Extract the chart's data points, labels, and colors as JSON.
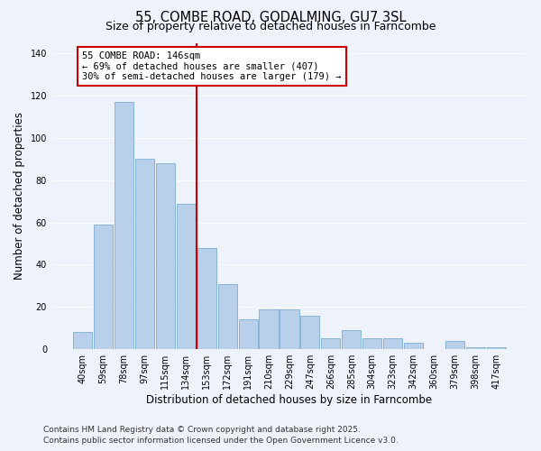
{
  "title": "55, COMBE ROAD, GODALMING, GU7 3SL",
  "subtitle": "Size of property relative to detached houses in Farncombe",
  "xlabel": "Distribution of detached houses by size in Farncombe",
  "ylabel": "Number of detached properties",
  "bar_labels": [
    "40sqm",
    "59sqm",
    "78sqm",
    "97sqm",
    "115sqm",
    "134sqm",
    "153sqm",
    "172sqm",
    "191sqm",
    "210sqm",
    "229sqm",
    "247sqm",
    "266sqm",
    "285sqm",
    "304sqm",
    "323sqm",
    "342sqm",
    "360sqm",
    "379sqm",
    "398sqm",
    "417sqm"
  ],
  "bar_values": [
    8,
    59,
    117,
    90,
    88,
    69,
    48,
    31,
    14,
    19,
    19,
    16,
    5,
    9,
    5,
    5,
    3,
    0,
    4,
    1,
    1
  ],
  "bar_color": "#b8d0ea",
  "bar_edge_color": "#7aadd4",
  "background_color": "#eef2fb",
  "grid_color": "#ffffff",
  "vline_x": 6,
  "vline_color": "#cc0000",
  "annotation_line1": "55 COMBE ROAD: 146sqm",
  "annotation_line2": "← 69% of detached houses are smaller (407)",
  "annotation_line3": "30% of semi-detached houses are larger (179) →",
  "annotation_box_color": "#ffffff",
  "annotation_box_edge_color": "#cc0000",
  "ylim": [
    0,
    145
  ],
  "yticks": [
    0,
    20,
    40,
    60,
    80,
    100,
    120,
    140
  ],
  "footer1": "Contains HM Land Registry data © Crown copyright and database right 2025.",
  "footer2": "Contains public sector information licensed under the Open Government Licence v3.0.",
  "title_fontsize": 10.5,
  "subtitle_fontsize": 9,
  "tick_fontsize": 7,
  "axis_label_fontsize": 8.5,
  "footer_fontsize": 6.5,
  "annotation_fontsize": 7.5
}
